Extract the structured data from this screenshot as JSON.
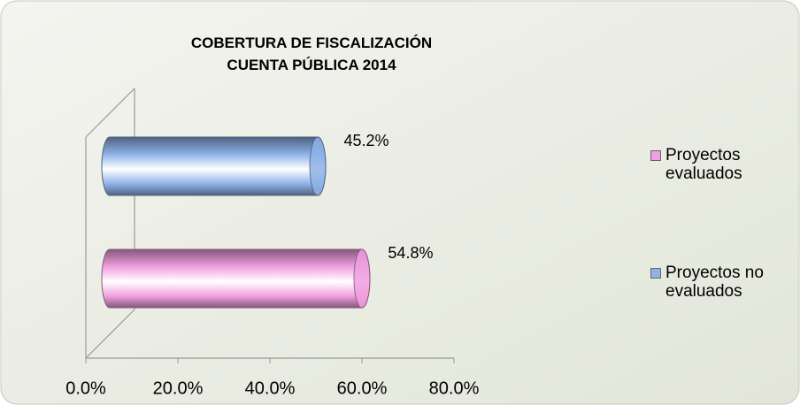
{
  "chart_data": {
    "type": "bar",
    "orientation": "horizontal",
    "title": "COBERTURA DE FISCALIZACIÓN\nCUENTA PÚBLICA 2014",
    "series": [
      {
        "name": "Proyectos evaluados",
        "color": "#f0a0e0",
        "values": [
          54.8
        ],
        "value_labels": [
          "54.8%"
        ]
      },
      {
        "name": "Proyectos no evaluados",
        "color": "#8fb3e8",
        "values": [
          45.2
        ],
        "value_labels": [
          "45.2%"
        ]
      }
    ],
    "xlim": [
      0,
      80
    ],
    "xticks": [
      {
        "value": 0,
        "label": "0.0%"
      },
      {
        "value": 20,
        "label": "20.0%"
      },
      {
        "value": 40,
        "label": "40.0%"
      },
      {
        "value": 60,
        "label": "60.0%"
      },
      {
        "value": 80,
        "label": "80.0%"
      }
    ],
    "legend": "right"
  }
}
